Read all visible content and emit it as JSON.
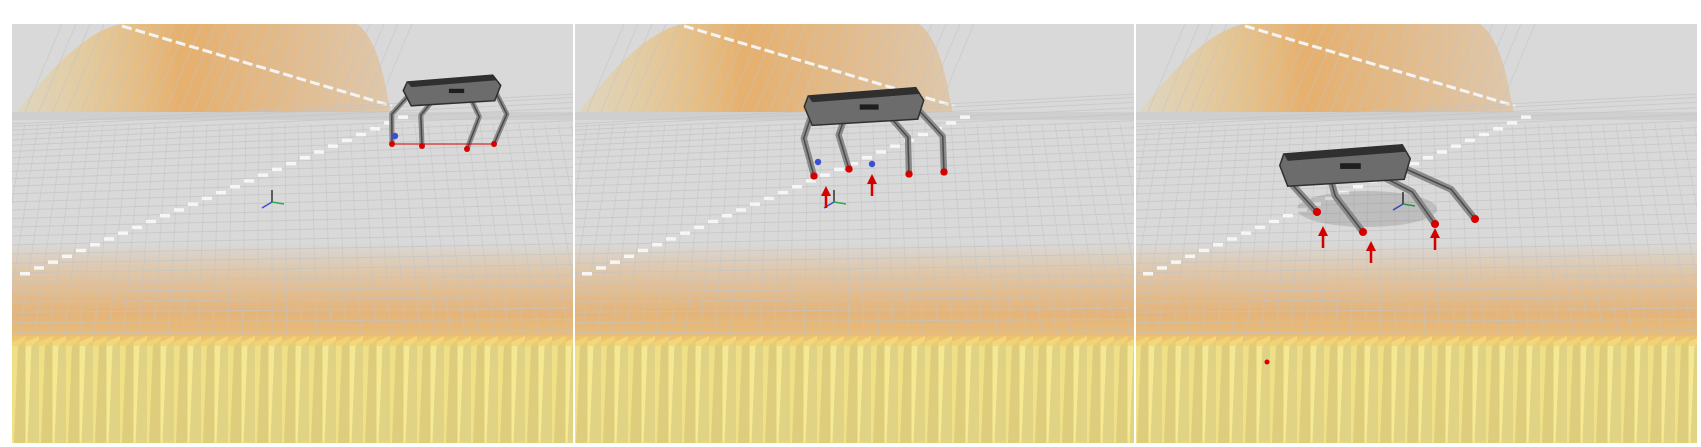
{
  "figure": {
    "panel_count": 3,
    "panels": [
      {
        "id": "panel-1",
        "robot_phase": "approach",
        "force_arrows": 0,
        "stance_feet": 3
      },
      {
        "id": "panel-2",
        "robot_phase": "mid-step",
        "force_arrows": 2,
        "stance_feet": 2
      },
      {
        "id": "panel-3",
        "robot_phase": "on-slope",
        "force_arrows": 3,
        "stance_feet": 3
      }
    ],
    "colors": {
      "background": "#d9d9d9",
      "grid_line": "#c4c4c4",
      "terrain_top": "#e8a85a",
      "terrain_mid": "#f2c867",
      "terrain_low": "#f7ef9f",
      "robot_body": "#6c6c6c",
      "robot_dark": "#2f2f2f",
      "force_arrow": "#d40000",
      "foot_blue": "#3b4fd6",
      "axis_x": "#3b4fd6",
      "axis_y": "#2fa84f"
    },
    "icons": [
      "quadruped-robot-icon",
      "coordinate-axes-icon",
      "force-arrow-icon"
    ]
  }
}
